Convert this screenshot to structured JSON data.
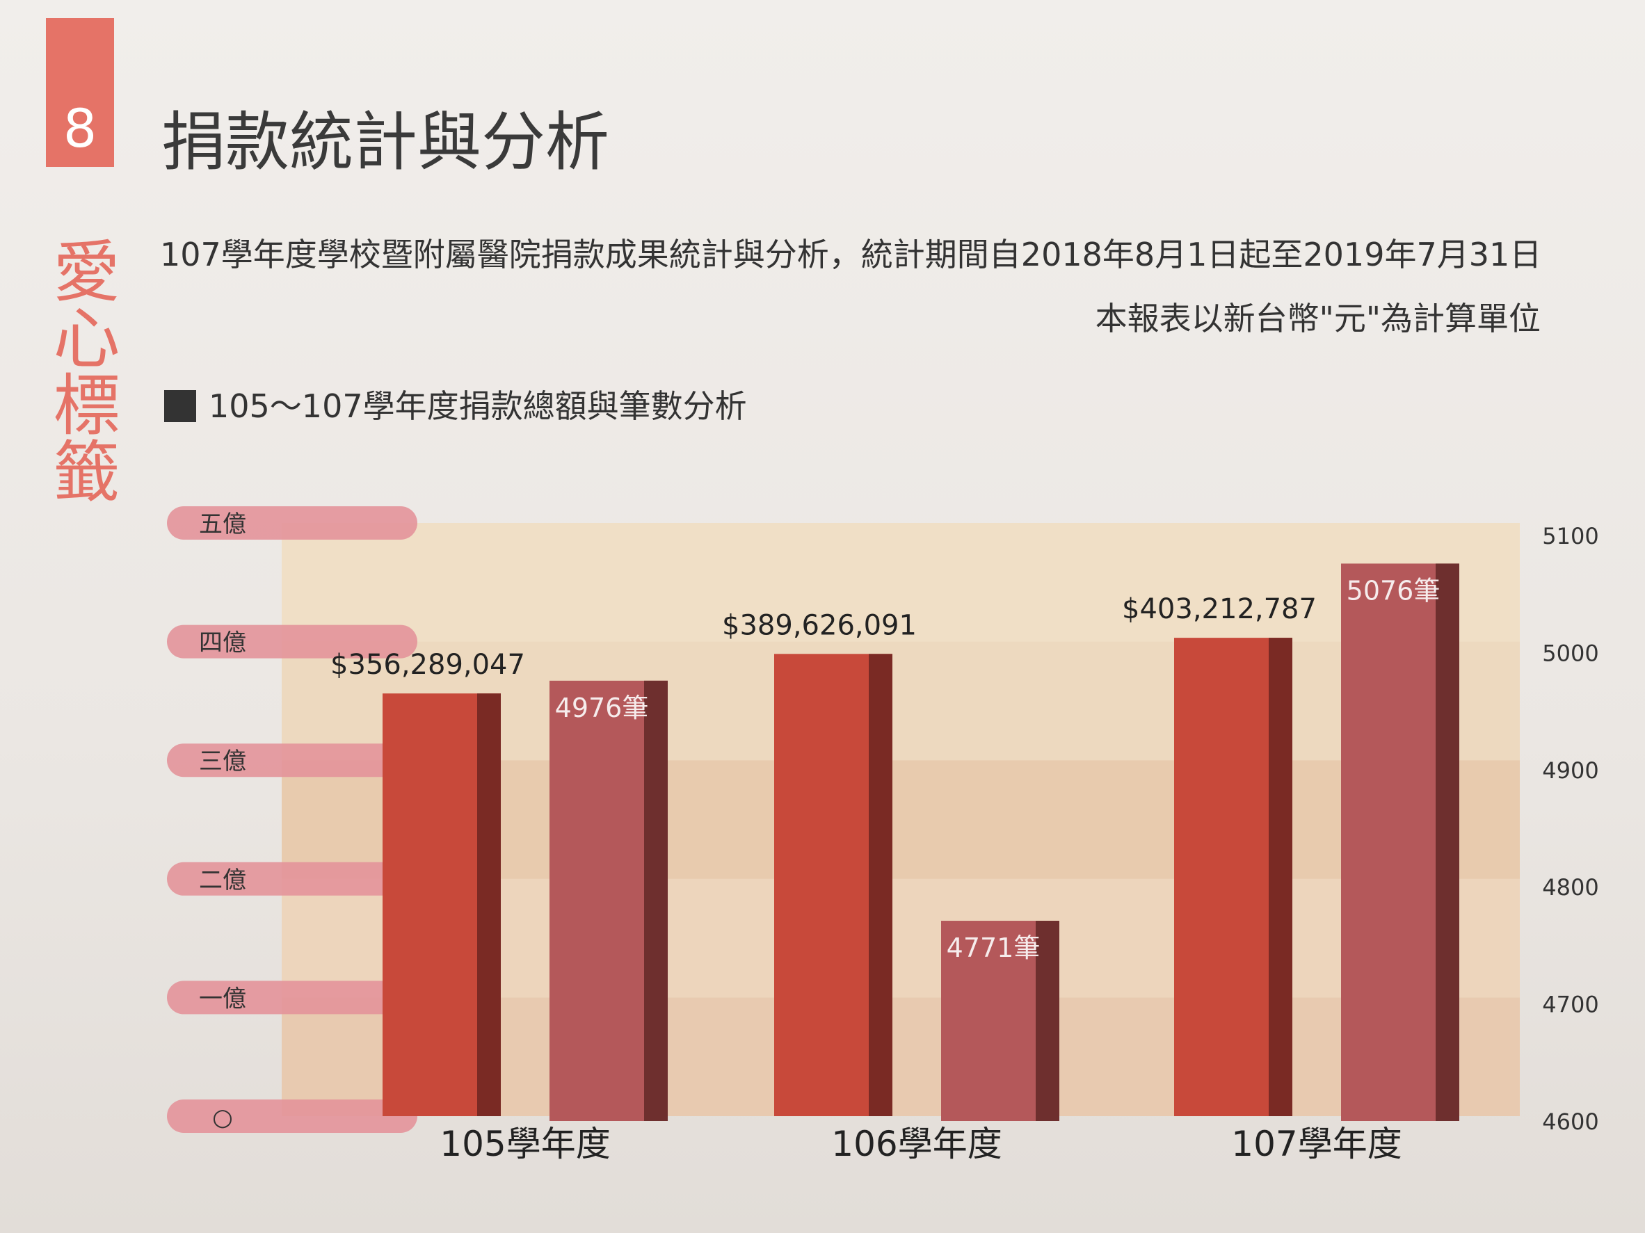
{
  "section": {
    "number": "8",
    "title": "捐款統計與分析",
    "side_label": "愛心標籤"
  },
  "intro": {
    "text": "107學年度學校暨附屬醫院捐款成果統計與分析，統計期間自2018年8月1日起至2019年7月31日",
    "unit_note": "本報表以新台幣\"元\"為計算單位"
  },
  "chart_heading": "105～107學年度捐款總額與筆數分析",
  "colors": {
    "accent": "#e57367",
    "amount_bar": "#c8493a",
    "count_bar": "#b4585a",
    "label_tab": "#e3949a"
  },
  "chart_data": {
    "type": "bar",
    "title": "105～107學年度捐款總額與筆數分析",
    "categories": [
      "105學年度",
      "106學年度",
      "107學年度"
    ],
    "series": [
      {
        "axis": "left",
        "values": [
          356289047,
          389626091,
          403212787
        ],
        "labels": [
          "$356,289,047",
          "$389,626,091",
          "$403,212,787"
        ]
      },
      {
        "axis": "right",
        "values": [
          4976,
          4771,
          5076
        ],
        "labels": [
          "4976筆",
          "4771筆",
          "5076筆"
        ]
      }
    ],
    "left_axis": {
      "ylim": [
        0,
        500000000
      ],
      "ticks": [
        0,
        100000000,
        200000000,
        300000000,
        400000000,
        500000000
      ],
      "tick_labels": [
        "○",
        "一億",
        "二億",
        "三億",
        "四億",
        "五億"
      ]
    },
    "right_axis": {
      "ylim": [
        4600,
        5100
      ],
      "ticks": [
        4600,
        4700,
        4800,
        4900,
        5000,
        5100
      ],
      "tick_labels": [
        "4600",
        "4700",
        "4800",
        "4900",
        "5000",
        "5100"
      ]
    },
    "xlabel": "",
    "ylabel": "",
    "legend": "none",
    "grid": true
  }
}
